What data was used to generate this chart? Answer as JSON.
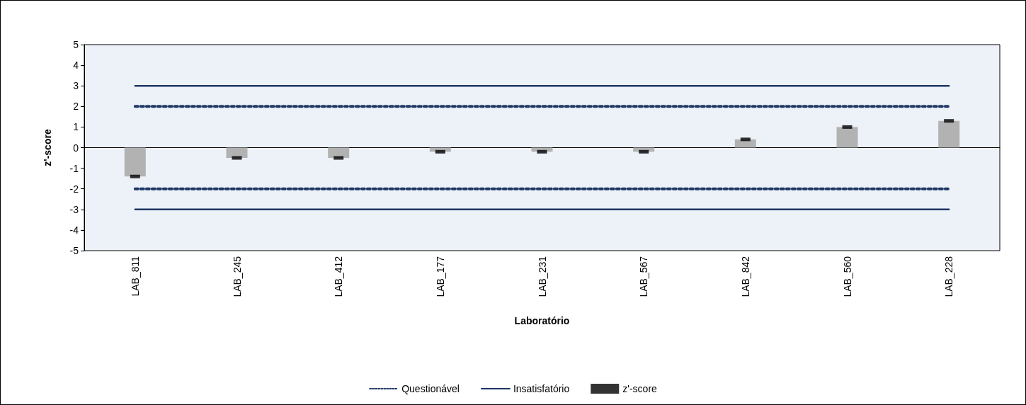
{
  "chart_data": {
    "type": "bar",
    "xlabel": "Laboratório",
    "ylabel": "z'-score",
    "categories": [
      "LAB_811",
      "LAB_245",
      "LAB_412",
      "LAB_177",
      "LAB_231",
      "LAB_567",
      "LAB_842",
      "LAB_560",
      "LAB_228"
    ],
    "series": [
      {
        "color": "#b2b2b2",
        "values": [
          -1.4,
          -0.5,
          -0.5,
          -0.2,
          -0.2,
          -0.2,
          0.4,
          1.0,
          1.3
        ]
      },
      {
        "type": "line",
        "name": "Questionável",
        "color": "#1f3864",
        "line_style": "dotted",
        "x": [
          "LAB_811",
          "LAB_245",
          "LAB_412",
          "LAB_177",
          "LAB_231",
          "LAB_567",
          "LAB_842",
          "LAB_560",
          "LAB_228",
          "LAB_228",
          "LAB_811",
          "LAB_245",
          "LAB_412",
          "LAB_177",
          "LAB_231",
          "LAB_567",
          "LAB_842",
          "LAB_560",
          "LAB_228"
        ],
        "values": [
          2,
          2,
          2,
          2,
          2,
          2,
          2,
          2,
          2,
          null,
          -2,
          -2,
          -2,
          -2,
          -2,
          -2,
          -2,
          -2,
          -2
        ]
      },
      {
        "type": "line",
        "name": "Insatisfatório",
        "color": "#1f3864",
        "line_style": "solid",
        "x": [
          "LAB_811",
          "LAB_245",
          "LAB_412",
          "LAB_177",
          "LAB_231",
          "LAB_567",
          "LAB_842",
          "LAB_560",
          "LAB_228",
          "LAB_228",
          "LAB_811",
          "LAB_245",
          "LAB_412",
          "LAB_177",
          "LAB_231",
          "LAB_567",
          "LAB_842",
          "LAB_560",
          "LAB_228"
        ],
        "values": [
          3,
          3,
          3,
          3,
          3,
          3,
          3,
          3,
          3,
          null,
          -3,
          -3,
          -3,
          -3,
          -3,
          -3,
          -3,
          -3,
          -3
        ]
      },
      {
        "type": "scatter",
        "name": "z'-score",
        "color": "#000000",
        "marker": "square",
        "values": [
          -1.4,
          -0.5,
          -0.5,
          -0.2,
          -0.2,
          -0.2,
          0.4,
          1.0,
          1.3
        ]
      }
    ],
    "ylim": [
      -5,
      5
    ],
    "yticks": [
      -5,
      -4,
      -3,
      -2,
      -1,
      0,
      1,
      2,
      3,
      4,
      5
    ],
    "legend": "bottom"
  }
}
